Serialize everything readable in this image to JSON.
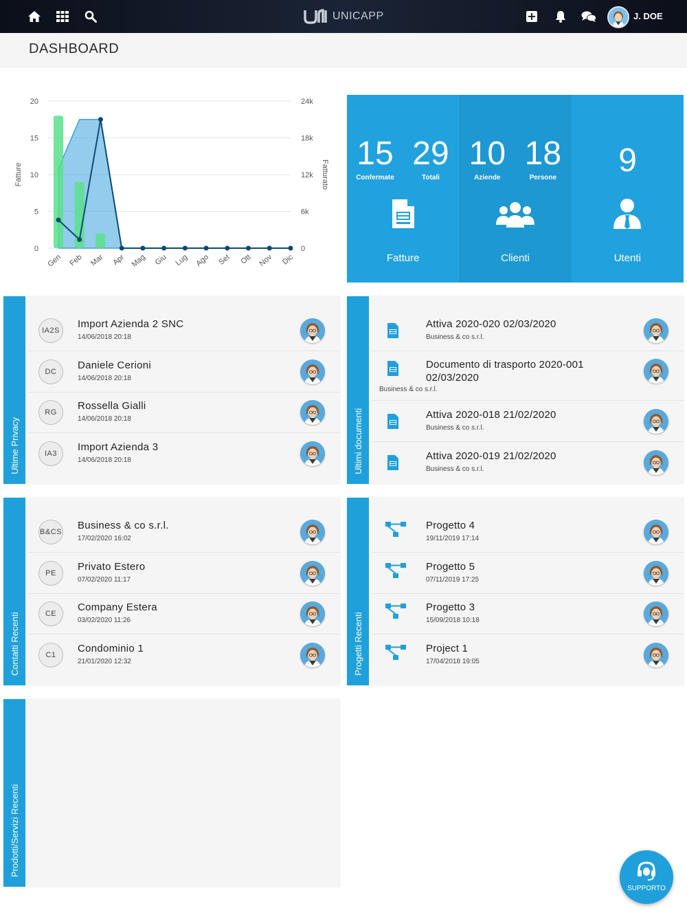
{
  "app": {
    "brand": "UNICAPP",
    "user_name": "J. DOE"
  },
  "page": {
    "title": "DASHBOARD"
  },
  "chart_data": {
    "type": "bar",
    "categories": [
      "Gen",
      "Feb",
      "Mar",
      "Apr",
      "Mag",
      "Giu",
      "Lug",
      "Ago",
      "Set",
      "Ott",
      "Nov",
      "Dic"
    ],
    "ylabel": "Fatture",
    "y2label": "Fatturato",
    "ylim": [
      0,
      20
    ],
    "y2lim": [
      0,
      24000
    ],
    "yticks": [
      "0",
      "5",
      "10",
      "15",
      "20"
    ],
    "y2ticks": [
      "0",
      "6k",
      "12k",
      "18k",
      "24k"
    ],
    "grid": true,
    "series": [
      {
        "type": "bar",
        "color": "#59e08b",
        "values": [
          18,
          9,
          2,
          0,
          0,
          0,
          0,
          0,
          0,
          0,
          0,
          0
        ]
      },
      {
        "type": "area",
        "axis": "right",
        "color": "#3aa3dc",
        "values": [
          13000,
          21000,
          21000,
          0,
          0,
          0,
          0,
          0,
          0,
          0,
          0,
          0
        ]
      },
      {
        "type": "line",
        "axis": "right",
        "color": "#0d4a72",
        "values": [
          4600,
          1400,
          21000,
          0,
          0,
          0,
          0,
          0,
          0,
          0,
          0,
          0
        ]
      }
    ]
  },
  "tiles": {
    "fatture": {
      "n1": "15",
      "l1": "Confermate",
      "n2": "29",
      "l2": "Totali",
      "label": "Fatture"
    },
    "clienti": {
      "n1": "10",
      "l1": "Aziende",
      "n2": "18",
      "l2": "Persone",
      "label": "Clienti"
    },
    "utenti": {
      "n1": "9",
      "label": "Utenti"
    }
  },
  "privacy": {
    "label": "Ultime Privacy",
    "items": [
      {
        "initials": "IA2S",
        "title": "Import Azienda 2 SNC",
        "date": "14/06/2018 20:18"
      },
      {
        "initials": "DC",
        "title": "Daniele Cerioni",
        "date": "14/06/2018 20:18"
      },
      {
        "initials": "RG",
        "title": "Rossella Gialli",
        "date": "14/06/2018 20:18"
      },
      {
        "initials": "IA3",
        "title": "Import Azienda 3",
        "date": "14/06/2018 20:18"
      }
    ]
  },
  "documents": {
    "label": "Ultimi documenti",
    "items": [
      {
        "title": "Attiva 2020-020 02/03/2020",
        "sub": "Business & co s.r.l."
      },
      {
        "title": "Documento di trasporto 2020-001",
        "title2": "02/03/2020",
        "sub": "Business & co s.r.l."
      },
      {
        "title": "Attiva 2020-018 21/02/2020",
        "sub": "Business & co s.r.l."
      },
      {
        "title": "Attiva 2020-019 21/02/2020",
        "sub": "Business & co s.r.l."
      }
    ]
  },
  "contacts": {
    "label": "Contatti Recenti",
    "items": [
      {
        "initials": "B&CS",
        "title": "Business & co s.r.l.",
        "date": "17/02/2020 16:02"
      },
      {
        "initials": "PE",
        "title": "Privato Estero",
        "date": "07/02/2020 11:17"
      },
      {
        "initials": "CE",
        "title": "Company Estera",
        "date": "03/02/2020 11:26"
      },
      {
        "initials": "C1",
        "title": "Condominio 1",
        "date": "21/01/2020 12:32"
      }
    ]
  },
  "projects": {
    "label": "Progetti Recenti",
    "items": [
      {
        "title": "Progetto 4",
        "date": "19/11/2019 17:14"
      },
      {
        "title": "Progetto 5",
        "date": "07/11/2019 17:25"
      },
      {
        "title": "Progetto 3",
        "date": "15/09/2018 10:18"
      },
      {
        "title": "Project 1",
        "date": "17/04/2018 19:05"
      }
    ]
  },
  "products": {
    "label": "Prodotti/Servizi Recenti"
  },
  "support": {
    "label": "SUPPORTO"
  },
  "icons": [
    "home-icon",
    "grid-icon",
    "search-icon",
    "plus-square-icon",
    "bell-icon",
    "chat-icon",
    "document-icon",
    "users-icon",
    "user-tie-icon",
    "project-tree-icon",
    "headset-icon"
  ]
}
